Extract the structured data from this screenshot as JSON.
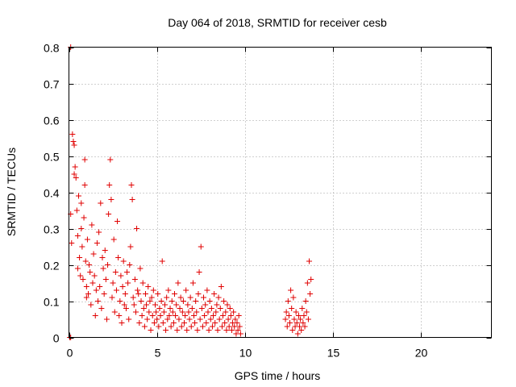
{
  "chart_data": {
    "type": "scatter",
    "title": "Day 064 of 2018, SRMTID for receiver cesb",
    "xlabel": "GPS time / hours",
    "ylabel": "SRMTID / TECUs",
    "xlim": [
      0,
      24
    ],
    "ylim": [
      0,
      0.8
    ],
    "xticks": [
      0,
      5,
      10,
      15,
      20
    ],
    "xtick_labels": [
      "0",
      "5",
      "10",
      "15",
      "20"
    ],
    "yticks": [
      0,
      0.1,
      0.2,
      0.3,
      0.4,
      0.5,
      0.6,
      0.7,
      0.8
    ],
    "ytick_labels": [
      "0",
      "0.1",
      "0.2",
      "0.3",
      "0.4",
      "0.5",
      "0.6",
      "0.7",
      "0.8"
    ],
    "grid": true,
    "marker": "+",
    "color": "#e00000",
    "series": [
      {
        "name": "SRMTID",
        "points": [
          [
            0.05,
            0.0
          ],
          [
            0.1,
            0.0
          ],
          [
            0.1,
            0.8
          ],
          [
            0.1,
            0.34
          ],
          [
            0.15,
            0.26
          ],
          [
            0.2,
            0.56
          ],
          [
            0.25,
            0.54
          ],
          [
            0.3,
            0.53
          ],
          [
            0.3,
            0.45
          ],
          [
            0.35,
            0.47
          ],
          [
            0.4,
            0.44
          ],
          [
            0.45,
            0.35
          ],
          [
            0.5,
            0.19
          ],
          [
            0.5,
            0.28
          ],
          [
            0.55,
            0.39
          ],
          [
            0.6,
            0.22
          ],
          [
            0.65,
            0.17
          ],
          [
            0.7,
            0.3
          ],
          [
            0.7,
            0.37
          ],
          [
            0.75,
            0.25
          ],
          [
            0.8,
            0.16
          ],
          [
            0.85,
            0.33
          ],
          [
            0.9,
            0.49
          ],
          [
            0.9,
            0.42
          ],
          [
            0.95,
            0.21
          ],
          [
            1.0,
            0.14
          ],
          [
            1.0,
            0.11
          ],
          [
            1.05,
            0.27
          ],
          [
            1.1,
            0.12
          ],
          [
            1.15,
            0.2
          ],
          [
            1.2,
            0.18
          ],
          [
            1.25,
            0.09
          ],
          [
            1.3,
            0.31
          ],
          [
            1.35,
            0.15
          ],
          [
            1.4,
            0.23
          ],
          [
            1.45,
            0.17
          ],
          [
            1.5,
            0.06
          ],
          [
            1.55,
            0.13
          ],
          [
            1.6,
            0.26
          ],
          [
            1.65,
            0.1
          ],
          [
            1.7,
            0.29
          ],
          [
            1.75,
            0.14
          ],
          [
            1.8,
            0.37
          ],
          [
            1.85,
            0.08
          ],
          [
            1.9,
            0.22
          ],
          [
            1.95,
            0.19
          ],
          [
            2.0,
            0.12
          ],
          [
            2.05,
            0.24
          ],
          [
            2.1,
            0.16
          ],
          [
            2.15,
            0.05
          ],
          [
            2.2,
            0.2
          ],
          [
            2.25,
            0.34
          ],
          [
            2.3,
            0.42
          ],
          [
            2.35,
            0.49
          ],
          [
            2.4,
            0.38
          ],
          [
            2.45,
            0.11
          ],
          [
            2.5,
            0.15
          ],
          [
            2.55,
            0.27
          ],
          [
            2.6,
            0.07
          ],
          [
            2.65,
            0.18
          ],
          [
            2.7,
            0.13
          ],
          [
            2.75,
            0.32
          ],
          [
            2.8,
            0.22
          ],
          [
            2.85,
            0.06
          ],
          [
            2.9,
            0.1
          ],
          [
            2.95,
            0.17
          ],
          [
            3.0,
            0.04
          ],
          [
            3.05,
            0.14
          ],
          [
            3.1,
            0.21
          ],
          [
            3.15,
            0.09
          ],
          [
            3.2,
            0.12
          ],
          [
            3.25,
            0.08
          ],
          [
            3.3,
            0.18
          ],
          [
            3.35,
            0.15
          ],
          [
            3.4,
            0.05
          ],
          [
            3.45,
            0.2
          ],
          [
            3.5,
            0.25
          ],
          [
            3.55,
            0.42
          ],
          [
            3.6,
            0.38
          ],
          [
            3.65,
            0.11
          ],
          [
            3.7,
            0.09
          ],
          [
            3.75,
            0.16
          ],
          [
            3.8,
            0.07
          ],
          [
            3.85,
            0.3
          ],
          [
            3.9,
            0.13
          ],
          [
            3.95,
            0.12
          ],
          [
            4.0,
            0.04
          ],
          [
            4.05,
            0.19
          ],
          [
            4.1,
            0.1
          ],
          [
            4.15,
            0.06
          ],
          [
            4.2,
            0.15
          ],
          [
            4.25,
            0.08
          ],
          [
            4.3,
            0.03
          ],
          [
            4.35,
            0.12
          ],
          [
            4.4,
            0.09
          ],
          [
            4.45,
            0.05
          ],
          [
            4.5,
            0.14
          ],
          [
            4.55,
            0.07
          ],
          [
            4.6,
            0.1
          ],
          [
            4.65,
            0.02
          ],
          [
            4.7,
            0.11
          ],
          [
            4.75,
            0.06
          ],
          [
            4.8,
            0.13
          ],
          [
            4.85,
            0.04
          ],
          [
            4.9,
            0.09
          ],
          [
            4.95,
            0.07
          ],
          [
            5.0,
            0.05
          ],
          [
            5.05,
            0.12
          ],
          [
            5.1,
            0.03
          ],
          [
            5.15,
            0.08
          ],
          [
            5.2,
            0.06
          ],
          [
            5.25,
            0.1
          ],
          [
            5.3,
            0.21
          ],
          [
            5.35,
            0.04
          ],
          [
            5.4,
            0.07
          ],
          [
            5.45,
            0.09
          ],
          [
            5.5,
            0.02
          ],
          [
            5.55,
            0.11
          ],
          [
            5.6,
            0.05
          ],
          [
            5.65,
            0.13
          ],
          [
            5.7,
            0.06
          ],
          [
            5.75,
            0.08
          ],
          [
            5.8,
            0.03
          ],
          [
            5.85,
            0.1
          ],
          [
            5.9,
            0.07
          ],
          [
            5.95,
            0.04
          ],
          [
            6.0,
            0.12
          ],
          [
            6.05,
            0.06
          ],
          [
            6.1,
            0.09
          ],
          [
            6.15,
            0.02
          ],
          [
            6.2,
            0.15
          ],
          [
            6.25,
            0.05
          ],
          [
            6.3,
            0.08
          ],
          [
            6.35,
            0.11
          ],
          [
            6.4,
            0.03
          ],
          [
            6.45,
            0.07
          ],
          [
            6.5,
            0.1
          ],
          [
            6.55,
            0.04
          ],
          [
            6.6,
            0.06
          ],
          [
            6.65,
            0.13
          ],
          [
            6.7,
            0.02
          ],
          [
            6.75,
            0.09
          ],
          [
            6.8,
            0.07
          ],
          [
            6.85,
            0.05
          ],
          [
            6.9,
            0.11
          ],
          [
            6.95,
            0.03
          ],
          [
            7.0,
            0.08
          ],
          [
            7.05,
            0.15
          ],
          [
            7.1,
            0.06
          ],
          [
            7.15,
            0.04
          ],
          [
            7.2,
            0.1
          ],
          [
            7.25,
            0.07
          ],
          [
            7.3,
            0.02
          ],
          [
            7.35,
            0.12
          ],
          [
            7.4,
            0.18
          ],
          [
            7.45,
            0.05
          ],
          [
            7.5,
            0.25
          ],
          [
            7.55,
            0.08
          ],
          [
            7.6,
            0.03
          ],
          [
            7.65,
            0.11
          ],
          [
            7.7,
            0.06
          ],
          [
            7.75,
            0.09
          ],
          [
            7.8,
            0.04
          ],
          [
            7.85,
            0.13
          ],
          [
            7.9,
            0.07
          ],
          [
            7.95,
            0.02
          ],
          [
            8.0,
            0.1
          ],
          [
            8.05,
            0.05
          ],
          [
            8.1,
            0.08
          ],
          [
            8.15,
            0.03
          ],
          [
            8.2,
            0.06
          ],
          [
            8.25,
            0.12
          ],
          [
            8.3,
            0.04
          ],
          [
            8.35,
            0.07
          ],
          [
            8.4,
            0.09
          ],
          [
            8.45,
            0.02
          ],
          [
            8.5,
            0.11
          ],
          [
            8.55,
            0.05
          ],
          [
            8.6,
            0.08
          ],
          [
            8.65,
            0.14
          ],
          [
            8.7,
            0.03
          ],
          [
            8.75,
            0.06
          ],
          [
            8.8,
            0.1
          ],
          [
            8.85,
            0.04
          ],
          [
            8.9,
            0.07
          ],
          [
            8.95,
            0.02
          ],
          [
            9.0,
            0.09
          ],
          [
            9.05,
            0.05
          ],
          [
            9.1,
            0.03
          ],
          [
            9.15,
            0.08
          ],
          [
            9.2,
            0.06
          ],
          [
            9.25,
            0.02
          ],
          [
            9.3,
            0.04
          ],
          [
            9.35,
            0.07
          ],
          [
            9.4,
            0.03
          ],
          [
            9.45,
            0.05
          ],
          [
            9.5,
            0.01
          ],
          [
            9.55,
            0.04
          ],
          [
            9.6,
            0.02
          ],
          [
            9.65,
            0.06
          ],
          [
            9.7,
            0.03
          ],
          [
            9.75,
            0.01
          ],
          [
            12.3,
            0.05
          ],
          [
            12.35,
            0.07
          ],
          [
            12.4,
            0.03
          ],
          [
            12.45,
            0.1
          ],
          [
            12.5,
            0.06
          ],
          [
            12.55,
            0.04
          ],
          [
            12.6,
            0.13
          ],
          [
            12.65,
            0.08
          ],
          [
            12.7,
            0.02
          ],
          [
            12.75,
            0.11
          ],
          [
            12.8,
            0.05
          ],
          [
            12.85,
            0.03
          ],
          [
            12.9,
            0.07
          ],
          [
            12.95,
            0.04
          ],
          [
            13.0,
            0.01
          ],
          [
            13.05,
            0.06
          ],
          [
            13.1,
            0.03
          ],
          [
            13.15,
            0.05
          ],
          [
            13.2,
            0.02
          ],
          [
            13.25,
            0.08
          ],
          [
            13.3,
            0.04
          ],
          [
            13.35,
            0.06
          ],
          [
            13.4,
            0.03
          ],
          [
            13.45,
            0.1
          ],
          [
            13.5,
            0.07
          ],
          [
            13.55,
            0.15
          ],
          [
            13.6,
            0.05
          ],
          [
            13.65,
            0.21
          ],
          [
            13.7,
            0.12
          ],
          [
            13.75,
            0.16
          ]
        ]
      }
    ]
  }
}
